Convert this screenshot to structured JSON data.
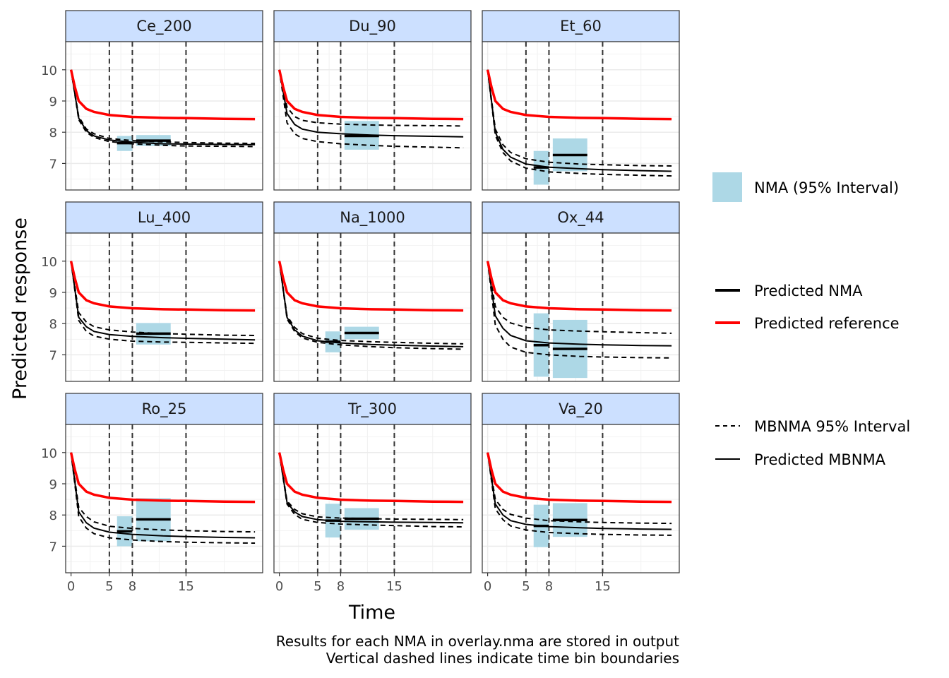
{
  "chart_data": {
    "type": "line",
    "xlabel": "Time",
    "ylabel": "Predicted response",
    "xlim": [
      -0.7,
      25
    ],
    "ylim": [
      6.15,
      10.9
    ],
    "x_ticks": [
      0,
      5,
      8,
      15
    ],
    "y_ticks": [
      7,
      8,
      9,
      10
    ],
    "grid": true,
    "time_bin_boundaries": [
      5,
      8,
      15
    ],
    "colors": {
      "nma_box": "#add8e6",
      "reference": "#ff0000",
      "mbnma": "#000000",
      "strip_fill": "#cce0ff",
      "vline": "#333333"
    },
    "reference_curve": {
      "x": [
        0,
        0.5,
        1,
        2,
        3,
        5,
        8,
        12,
        15,
        20,
        24
      ],
      "y": [
        10,
        9.45,
        9.0,
        8.75,
        8.65,
        8.55,
        8.49,
        8.46,
        8.45,
        8.43,
        8.42
      ]
    },
    "panels": [
      {
        "name": "Ce_200",
        "mbnma": {
          "x": [
            0,
            1,
            2,
            3,
            5,
            8,
            12,
            15,
            20,
            24
          ],
          "y": [
            10,
            8.45,
            8.05,
            7.88,
            7.75,
            7.68,
            7.63,
            7.62,
            7.61,
            7.6
          ]
        },
        "upper": {
          "x": [
            0,
            1,
            2,
            3,
            5,
            8,
            12,
            15,
            20,
            24
          ],
          "y": [
            10,
            8.5,
            8.1,
            7.95,
            7.8,
            7.73,
            7.69,
            7.67,
            7.65,
            7.64
          ]
        },
        "lower": {
          "x": [
            0,
            1,
            2,
            3,
            5,
            8,
            12,
            15,
            20,
            24
          ],
          "y": [
            10,
            8.4,
            8.0,
            7.83,
            7.7,
            7.63,
            7.58,
            7.56,
            7.55,
            7.54
          ]
        },
        "nma": [
          {
            "x0": 6,
            "x1": 8,
            "mid": 7.65,
            "lo": 7.4,
            "hi": 7.88
          },
          {
            "x0": 8.5,
            "x1": 13,
            "mid": 7.73,
            "lo": 7.56,
            "hi": 7.91
          }
        ]
      },
      {
        "name": "Du_90",
        "mbnma": {
          "x": [
            0,
            1,
            2,
            3,
            5,
            8,
            12,
            15,
            20,
            24
          ],
          "y": [
            10,
            8.6,
            8.25,
            8.1,
            8.0,
            7.95,
            7.91,
            7.89,
            7.87,
            7.85
          ]
        },
        "upper": {
          "x": [
            0,
            1,
            2,
            3,
            5,
            8,
            12,
            15,
            20,
            24
          ],
          "y": [
            10,
            8.8,
            8.5,
            8.38,
            8.3,
            8.26,
            8.23,
            8.22,
            8.21,
            8.2
          ]
        },
        "lower": {
          "x": [
            0,
            1,
            2,
            3,
            5,
            8,
            12,
            15,
            20,
            24
          ],
          "y": [
            10,
            8.3,
            7.95,
            7.8,
            7.7,
            7.63,
            7.58,
            7.55,
            7.52,
            7.5
          ]
        },
        "nma": [
          {
            "x0": 8.5,
            "x1": 13,
            "mid": 7.88,
            "lo": 7.44,
            "hi": 8.36
          }
        ]
      },
      {
        "name": "Et_60",
        "mbnma": {
          "x": [
            0,
            1,
            2,
            3,
            5,
            8,
            12,
            15,
            20,
            24
          ],
          "y": [
            10,
            8.0,
            7.45,
            7.2,
            6.98,
            6.88,
            6.83,
            6.8,
            6.77,
            6.75
          ]
        },
        "upper": {
          "x": [
            0,
            1,
            2,
            3,
            5,
            8,
            12,
            15,
            20,
            24
          ],
          "y": [
            10,
            8.1,
            7.6,
            7.35,
            7.15,
            7.04,
            6.98,
            6.96,
            6.93,
            6.92
          ]
        },
        "lower": {
          "x": [
            0,
            1,
            2,
            3,
            5,
            8,
            12,
            15,
            20,
            24
          ],
          "y": [
            10,
            7.9,
            7.35,
            7.08,
            6.85,
            6.73,
            6.68,
            6.65,
            6.62,
            6.6
          ]
        },
        "nma": [
          {
            "x0": 6,
            "x1": 8,
            "mid": 6.87,
            "lo": 6.32,
            "hi": 7.4
          },
          {
            "x0": 8.5,
            "x1": 13,
            "mid": 7.27,
            "lo": 6.75,
            "hi": 7.8
          }
        ]
      },
      {
        "name": "Lu_400",
        "mbnma": {
          "x": [
            0,
            1,
            2,
            3,
            5,
            8,
            12,
            15,
            20,
            24
          ],
          "y": [
            10,
            8.2,
            7.9,
            7.75,
            7.65,
            7.59,
            7.55,
            7.53,
            7.5,
            7.48
          ]
        },
        "upper": {
          "x": [
            0,
            1,
            2,
            3,
            5,
            8,
            12,
            15,
            20,
            24
          ],
          "y": [
            10,
            8.35,
            8.05,
            7.9,
            7.8,
            7.73,
            7.68,
            7.66,
            7.63,
            7.62
          ]
        },
        "lower": {
          "x": [
            0,
            1,
            2,
            3,
            5,
            8,
            12,
            15,
            20,
            24
          ],
          "y": [
            10,
            8.1,
            7.75,
            7.6,
            7.5,
            7.44,
            7.41,
            7.4,
            7.38,
            7.37
          ]
        },
        "nma": [
          {
            "x0": 8.5,
            "x1": 13,
            "mid": 7.68,
            "lo": 7.33,
            "hi": 8.02
          }
        ]
      },
      {
        "name": "Na_1000",
        "mbnma": {
          "x": [
            0,
            1,
            2,
            3,
            5,
            8,
            12,
            15,
            20,
            24
          ],
          "y": [
            10,
            8.2,
            7.8,
            7.6,
            7.45,
            7.38,
            7.33,
            7.31,
            7.28,
            7.26
          ]
        },
        "upper": {
          "x": [
            0,
            1,
            2,
            3,
            5,
            8,
            12,
            15,
            20,
            24
          ],
          "y": [
            10,
            8.25,
            7.88,
            7.68,
            7.53,
            7.46,
            7.42,
            7.4,
            7.37,
            7.35
          ]
        },
        "lower": {
          "x": [
            0,
            1,
            2,
            3,
            5,
            8,
            12,
            15,
            20,
            24
          ],
          "y": [
            10,
            8.15,
            7.75,
            7.54,
            7.4,
            7.32,
            7.26,
            7.23,
            7.2,
            7.18
          ]
        },
        "nma": [
          {
            "x0": 6,
            "x1": 8,
            "mid": 7.42,
            "lo": 7.08,
            "hi": 7.75
          },
          {
            "x0": 8.5,
            "x1": 13,
            "mid": 7.7,
            "lo": 7.5,
            "hi": 7.9
          }
        ]
      },
      {
        "name": "Ox_44",
        "mbnma": {
          "x": [
            0,
            1,
            2,
            3,
            5,
            8,
            12,
            15,
            20,
            24
          ],
          "y": [
            10,
            8.25,
            7.85,
            7.62,
            7.45,
            7.38,
            7.34,
            7.32,
            7.3,
            7.29
          ]
        },
        "upper": {
          "x": [
            0,
            1,
            2,
            3,
            5,
            8,
            12,
            15,
            20,
            24
          ],
          "y": [
            10,
            8.55,
            8.2,
            8.02,
            7.88,
            7.8,
            7.76,
            7.74,
            7.71,
            7.69
          ]
        },
        "lower": {
          "x": [
            0,
            1,
            2,
            3,
            5,
            8,
            12,
            15,
            20,
            24
          ],
          "y": [
            10,
            7.95,
            7.5,
            7.25,
            7.08,
            7.0,
            6.95,
            6.93,
            6.91,
            6.9
          ]
        },
        "nma": [
          {
            "x0": 6,
            "x1": 8,
            "mid": 7.31,
            "lo": 6.3,
            "hi": 8.33
          },
          {
            "x0": 8.5,
            "x1": 13,
            "mid": 7.19,
            "lo": 6.26,
            "hi": 8.12
          }
        ]
      },
      {
        "name": "Ro_25",
        "mbnma": {
          "x": [
            0,
            1,
            2,
            3,
            5,
            8,
            12,
            15,
            20,
            24
          ],
          "y": [
            10,
            8.1,
            7.75,
            7.58,
            7.45,
            7.38,
            7.33,
            7.31,
            7.28,
            7.27
          ]
        },
        "upper": {
          "x": [
            0,
            1,
            2,
            3,
            5,
            8,
            12,
            15,
            20,
            24
          ],
          "y": [
            10,
            8.25,
            7.95,
            7.78,
            7.64,
            7.57,
            7.52,
            7.5,
            7.47,
            7.46
          ]
        },
        "lower": {
          "x": [
            0,
            1,
            2,
            3,
            5,
            8,
            12,
            15,
            20,
            24
          ],
          "y": [
            10,
            7.95,
            7.58,
            7.4,
            7.27,
            7.2,
            7.15,
            7.13,
            7.11,
            7.1
          ]
        },
        "nma": [
          {
            "x0": 6,
            "x1": 8,
            "mid": 7.48,
            "lo": 7.0,
            "hi": 7.96
          },
          {
            "x0": 8.5,
            "x1": 13,
            "mid": 7.86,
            "lo": 7.16,
            "hi": 8.54
          }
        ]
      },
      {
        "name": "Tr_300",
        "mbnma": {
          "x": [
            0,
            1,
            2,
            3,
            5,
            8,
            12,
            15,
            20,
            24
          ],
          "y": [
            10,
            8.4,
            8.1,
            7.95,
            7.85,
            7.8,
            7.78,
            7.77,
            7.76,
            7.75
          ]
        },
        "upper": {
          "x": [
            0,
            1,
            2,
            3,
            5,
            8,
            12,
            15,
            20,
            24
          ],
          "y": [
            10,
            8.45,
            8.18,
            8.04,
            7.94,
            7.9,
            7.88,
            7.87,
            7.86,
            7.85
          ]
        },
        "lower": {
          "x": [
            0,
            1,
            2,
            3,
            5,
            8,
            12,
            15,
            20,
            24
          ],
          "y": [
            10,
            8.35,
            8.02,
            7.86,
            7.76,
            7.71,
            7.68,
            7.66,
            7.63,
            7.62
          ]
        },
        "nma": [
          {
            "x0": 6,
            "x1": 8,
            "mid": 7.82,
            "lo": 7.28,
            "hi": 8.36
          },
          {
            "x0": 8.5,
            "x1": 13,
            "mid": 7.88,
            "lo": 7.53,
            "hi": 8.22
          }
        ]
      },
      {
        "name": "Va_20",
        "mbnma": {
          "x": [
            0,
            1,
            2,
            3,
            5,
            8,
            12,
            15,
            20,
            24
          ],
          "y": [
            10,
            8.35,
            8.0,
            7.82,
            7.7,
            7.63,
            7.59,
            7.57,
            7.55,
            7.54
          ]
        },
        "upper": {
          "x": [
            0,
            1,
            2,
            3,
            5,
            8,
            12,
            15,
            20,
            24
          ],
          "y": [
            10,
            8.5,
            8.18,
            8.02,
            7.9,
            7.82,
            7.78,
            7.76,
            7.74,
            7.73
          ]
        },
        "lower": {
          "x": [
            0,
            1,
            2,
            3,
            5,
            8,
            12,
            15,
            20,
            24
          ],
          "y": [
            10,
            8.2,
            7.85,
            7.65,
            7.52,
            7.44,
            7.4,
            7.38,
            7.36,
            7.35
          ]
        },
        "nma": [
          {
            "x0": 6,
            "x1": 8,
            "mid": 7.65,
            "lo": 6.97,
            "hi": 8.33
          },
          {
            "x0": 8.5,
            "x1": 13,
            "mid": 7.84,
            "lo": 7.3,
            "hi": 8.38
          }
        ]
      }
    ],
    "legend": {
      "nma_interval": "NMA (95% Interval)",
      "predicted_nma": "Predicted NMA",
      "predicted_reference": "Predicted reference",
      "mbnma_interval": "MBNMA 95% Interval",
      "predicted_mbnma": "Predicted MBNMA"
    },
    "caption": [
      "Results for each NMA in overlay.nma are stored in output",
      "Vertical dashed lines indicate time bin boundaries"
    ]
  }
}
